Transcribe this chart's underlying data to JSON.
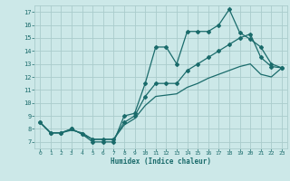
{
  "title": "",
  "xlabel": "Humidex (Indice chaleur)",
  "ylabel": "",
  "bg_color": "#cce8e8",
  "grid_color": "#aacccc",
  "line_color": "#1a6b6b",
  "xlim": [
    -0.5,
    23.5
  ],
  "ylim": [
    6.5,
    17.5
  ],
  "xticks": [
    0,
    1,
    2,
    3,
    4,
    5,
    6,
    7,
    8,
    9,
    10,
    11,
    12,
    13,
    14,
    15,
    16,
    17,
    18,
    19,
    20,
    21,
    22,
    23
  ],
  "yticks": [
    7,
    8,
    9,
    10,
    11,
    12,
    13,
    14,
    15,
    16,
    17
  ],
  "line1_x": [
    0,
    1,
    2,
    3,
    4,
    5,
    6,
    7,
    8,
    9,
    10,
    11,
    12,
    13,
    14,
    15,
    16,
    17,
    18,
    19,
    20,
    21,
    22,
    23
  ],
  "line1_y": [
    8.5,
    7.7,
    7.7,
    8.0,
    7.6,
    7.0,
    7.0,
    7.0,
    9.0,
    9.2,
    11.5,
    14.3,
    14.3,
    13.0,
    15.5,
    15.5,
    15.5,
    16.0,
    17.2,
    15.4,
    14.9,
    14.3,
    13.0,
    12.7
  ],
  "line2_x": [
    0,
    1,
    2,
    3,
    4,
    5,
    6,
    7,
    8,
    9,
    10,
    11,
    12,
    13,
    14,
    15,
    16,
    17,
    18,
    19,
    20,
    21,
    22,
    23
  ],
  "line2_y": [
    8.5,
    7.7,
    7.7,
    8.0,
    7.6,
    7.2,
    7.2,
    7.2,
    8.5,
    9.0,
    10.5,
    11.5,
    11.5,
    11.5,
    12.5,
    13.0,
    13.5,
    14.0,
    14.5,
    15.0,
    15.3,
    13.5,
    12.8,
    12.7
  ],
  "line3_x": [
    0,
    1,
    2,
    3,
    4,
    5,
    6,
    7,
    8,
    9,
    10,
    11,
    12,
    13,
    14,
    15,
    16,
    17,
    18,
    19,
    20,
    21,
    22,
    23
  ],
  "line3_y": [
    8.5,
    7.7,
    7.7,
    7.9,
    7.7,
    7.2,
    7.2,
    7.2,
    8.3,
    8.8,
    9.8,
    10.5,
    10.6,
    10.7,
    11.2,
    11.5,
    11.9,
    12.2,
    12.5,
    12.8,
    13.0,
    12.2,
    12.0,
    12.7
  ]
}
